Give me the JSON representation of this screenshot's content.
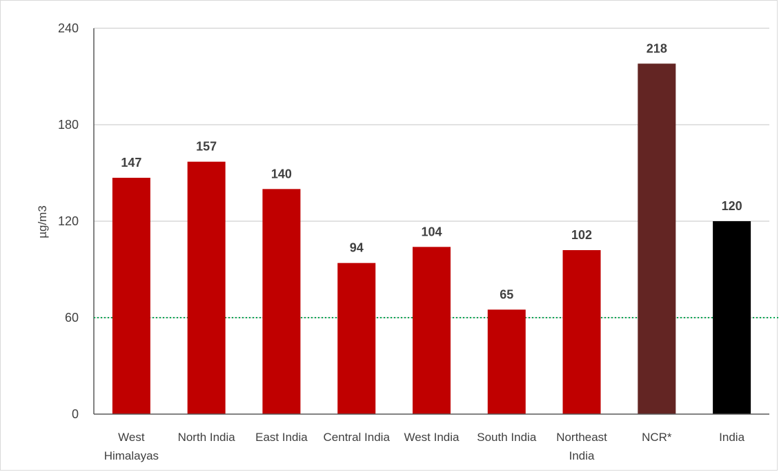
{
  "chart_data": {
    "type": "bar",
    "categories": [
      "West\nHimalayas",
      "North India",
      "East India",
      "Central India",
      "West India",
      "South India",
      "Northeast\nIndia",
      "NCR*",
      "India"
    ],
    "values": [
      147,
      157,
      140,
      94,
      104,
      65,
      102,
      218,
      120
    ],
    "bar_colors": [
      "#c00000",
      "#c00000",
      "#c00000",
      "#c00000",
      "#c00000",
      "#c00000",
      "#c00000",
      "#632523",
      "#000000"
    ],
    "title": "",
    "xlabel": "",
    "ylabel": "µg/m3",
    "ylim": [
      0,
      240
    ],
    "yticks": [
      0,
      60,
      120,
      180,
      240
    ],
    "reference_line": {
      "value": 60,
      "style": "dotted",
      "color": "#00a651"
    },
    "grid": "horizontal",
    "data_labels": true
  }
}
